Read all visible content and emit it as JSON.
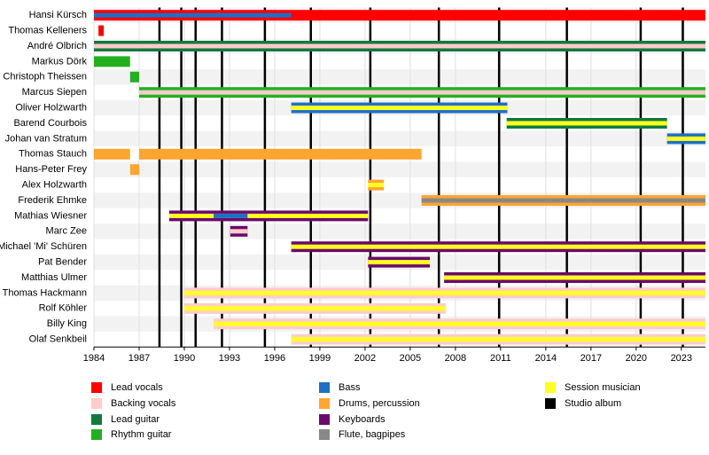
{
  "chart_data": {
    "type": "timeline",
    "xlim": [
      1984,
      2024.6
    ],
    "xticks": [
      1984,
      1987,
      1990,
      1993,
      1996,
      1999,
      2002,
      2005,
      2008,
      2011,
      2014,
      2017,
      2020,
      2023
    ],
    "legend": [
      {
        "name": "Lead vocals",
        "color": "#ff0000"
      },
      {
        "name": "Backing vocals",
        "color": "#ffcccc"
      },
      {
        "name": "Lead guitar",
        "color": "#117a3c"
      },
      {
        "name": "Rhythm guitar",
        "color": "#22b022"
      },
      {
        "name": "Bass",
        "color": "#1f6fc5"
      },
      {
        "name": "Drums, percussion",
        "color": "#ffa530"
      },
      {
        "name": "Keyboards",
        "color": "#6a0a6a"
      },
      {
        "name": "Flute, bagpipes",
        "color": "#888888"
      },
      {
        "name": "Session musician",
        "color": "#ffff22"
      },
      {
        "name": "Studio album",
        "color": "#000000"
      }
    ],
    "studio_albums": [
      1988.35,
      1989.8,
      1990.75,
      1992.5,
      1995.35,
      1998.4,
      2002.35,
      2006.9,
      2010.9,
      2015.4,
      2020.3,
      2023.1
    ],
    "members": [
      {
        "name": "Hansi Kürsch",
        "periods": [
          {
            "role": "Lead vocals",
            "start": 1984,
            "end": 2024.6
          },
          {
            "role": "Bass",
            "start": 1984,
            "end": 1997.1
          }
        ]
      },
      {
        "name": "Thomas Kelleners",
        "periods": [
          {
            "role": "Lead vocals",
            "start": 1984.3,
            "end": 1984.65
          }
        ]
      },
      {
        "name": "André Olbrich",
        "periods": [
          {
            "role": "Lead guitar",
            "start": 1984,
            "end": 2024.6
          },
          {
            "role": "Backing vocals",
            "start": 1984,
            "end": 2024.6
          }
        ]
      },
      {
        "name": "Markus Dörk",
        "periods": [
          {
            "role": "Rhythm guitar",
            "start": 1984,
            "end": 1986.4
          }
        ]
      },
      {
        "name": "Christoph Theissen",
        "periods": [
          {
            "role": "Rhythm guitar",
            "start": 1986.4,
            "end": 1987
          }
        ]
      },
      {
        "name": "Marcus Siepen",
        "periods": [
          {
            "role": "Rhythm guitar",
            "start": 1987,
            "end": 2024.6
          },
          {
            "role": "Backing vocals",
            "start": 1987,
            "end": 2024.6
          }
        ]
      },
      {
        "name": "Oliver Holzwarth",
        "periods": [
          {
            "role": "Bass",
            "start": 1997.1,
            "end": 2011.45
          },
          {
            "role": "Session musician",
            "start": 1997.1,
            "end": 2011.45
          }
        ]
      },
      {
        "name": "Barend Courbois",
        "periods": [
          {
            "role": "Lead guitar",
            "start": 2011.4,
            "end": 2022.05
          },
          {
            "role": "Session musician",
            "start": 2011.4,
            "end": 2022.05
          }
        ]
      },
      {
        "name": "Johan van Stratum",
        "periods": [
          {
            "role": "Bass",
            "start": 2022.05,
            "end": 2024.6
          },
          {
            "role": "Session musician",
            "start": 2022.05,
            "end": 2024.6
          }
        ]
      },
      {
        "name": "Thomas Stauch",
        "periods": [
          {
            "role": "Drums, percussion",
            "start": 1984,
            "end": 1986.4
          },
          {
            "role": "Drums, percussion",
            "start": 1987,
            "end": 2005.75
          }
        ]
      },
      {
        "name": "Hans-Peter Frey",
        "periods": [
          {
            "role": "Drums, percussion",
            "start": 1986.4,
            "end": 1987
          }
        ]
      },
      {
        "name": "Alex Holzwarth",
        "periods": [
          {
            "role": "Drums, percussion",
            "start": 2002.2,
            "end": 2003.25
          },
          {
            "role": "Session musician",
            "start": 2002.2,
            "end": 2003.25
          }
        ]
      },
      {
        "name": "Frederik Ehmke",
        "periods": [
          {
            "role": "Drums, percussion",
            "start": 2005.75,
            "end": 2024.6
          },
          {
            "role": "Flute, bagpipes",
            "start": 2005.75,
            "end": 2024.6
          }
        ]
      },
      {
        "name": "Mathias Wiesner",
        "periods": [
          {
            "role": "Keyboards",
            "start": 1989,
            "end": 2002.2
          },
          {
            "role": "Session musician",
            "start": 1989,
            "end": 2002.2
          },
          {
            "role": "Bass",
            "start": 1991.95,
            "end": 1994.2
          }
        ]
      },
      {
        "name": "Marc Zee",
        "periods": [
          {
            "role": "Keyboards",
            "start": 1993.05,
            "end": 1994.2
          },
          {
            "role": "Backing vocals",
            "start": 1993.05,
            "end": 1994.2
          }
        ]
      },
      {
        "name": "Michael 'Mi' Schüren",
        "periods": [
          {
            "role": "Keyboards",
            "start": 1997.1,
            "end": 2024.6
          },
          {
            "role": "Session musician",
            "start": 1997.1,
            "end": 2024.6
          }
        ]
      },
      {
        "name": "Pat Bender",
        "periods": [
          {
            "role": "Keyboards",
            "start": 2002.2,
            "end": 2006.3
          },
          {
            "role": "Session musician",
            "start": 2002.2,
            "end": 2006.3
          }
        ]
      },
      {
        "name": "Matthias Ulmer",
        "periods": [
          {
            "role": "Keyboards",
            "start": 2007.25,
            "end": 2024.6
          },
          {
            "role": "Session musician",
            "start": 2007.25,
            "end": 2024.6
          }
        ]
      },
      {
        "name": "Thomas Hackmann",
        "periods": [
          {
            "role": "Backing vocals",
            "start": 1990,
            "end": 2024.6
          },
          {
            "role": "Session musician",
            "start": 1990,
            "end": 2024.6
          }
        ]
      },
      {
        "name": "Rolf Köhler",
        "periods": [
          {
            "role": "Backing vocals",
            "start": 1990,
            "end": 2007.35
          },
          {
            "role": "Session musician",
            "start": 1990,
            "end": 2007.35
          }
        ]
      },
      {
        "name": "Billy King",
        "periods": [
          {
            "role": "Backing vocals",
            "start": 1991.95,
            "end": 2024.6
          },
          {
            "role": "Session musician",
            "start": 1991.95,
            "end": 2024.6
          }
        ]
      },
      {
        "name": "Olaf Senkbeil",
        "periods": [
          {
            "role": "Backing vocals",
            "start": 1997.1,
            "end": 2024.6
          },
          {
            "role": "Session musician",
            "start": 1997.1,
            "end": 2024.6
          }
        ]
      }
    ]
  }
}
